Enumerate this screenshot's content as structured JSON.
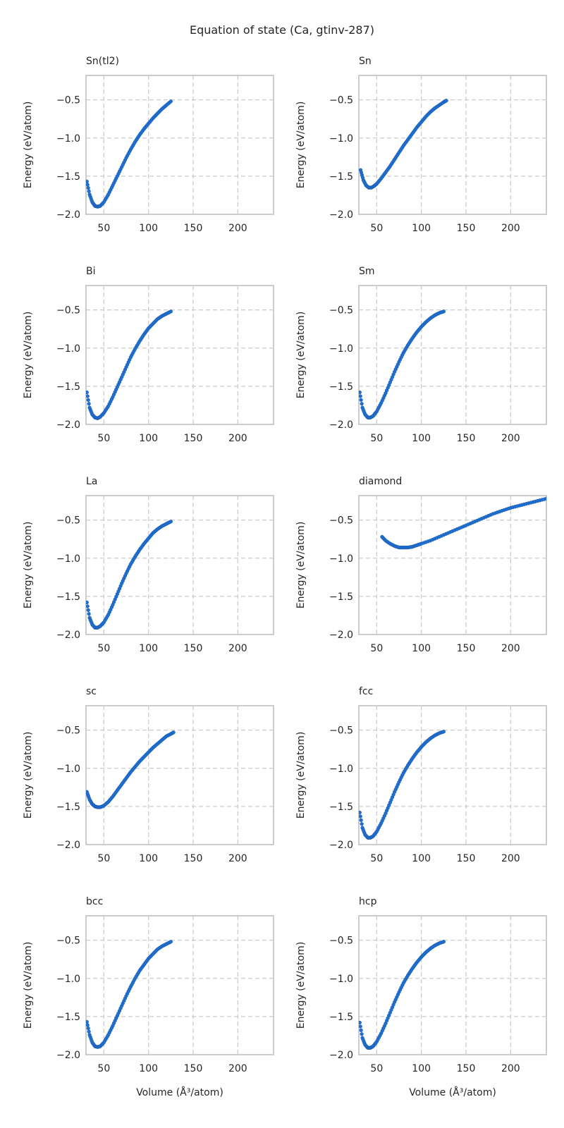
{
  "figure": {
    "title": "Equation of state (Ca, gtinv-287)",
    "xlabel": "Volume (Å³/atom)",
    "ylabel": "Energy (eV/atom)",
    "point_color": "#1f6fd1"
  },
  "chart_data": [
    {
      "type": "scatter",
      "title": "Sn(tl2)",
      "xlabel": "",
      "ylabel": "Energy (eV/atom)",
      "xlim": [
        30,
        240
      ],
      "ylim": [
        -2.0,
        -0.18
      ],
      "xticks": [
        50,
        100,
        150,
        200
      ],
      "yticks": [
        -2.0,
        -1.5,
        -1.0,
        -0.5
      ],
      "grid": true,
      "series": [
        {
          "x": [
            31,
            34,
            37,
            40,
            43,
            46,
            50,
            55,
            60,
            65,
            70,
            75,
            80,
            85,
            90,
            95,
            100,
            105,
            110,
            115,
            120,
            125
          ],
          "y": [
            -1.57,
            -1.74,
            -1.84,
            -1.89,
            -1.9,
            -1.89,
            -1.84,
            -1.74,
            -1.62,
            -1.5,
            -1.38,
            -1.26,
            -1.15,
            -1.05,
            -0.96,
            -0.88,
            -0.81,
            -0.74,
            -0.68,
            -0.62,
            -0.57,
            -0.52
          ]
        }
      ]
    },
    {
      "type": "scatter",
      "title": "Sn",
      "xlabel": "",
      "ylabel": "Energy (eV/atom)",
      "xlim": [
        30,
        240
      ],
      "ylim": [
        -2.0,
        -0.18
      ],
      "xticks": [
        50,
        100,
        150,
        200
      ],
      "yticks": [
        -2.0,
        -1.5,
        -1.0,
        -0.5
      ],
      "grid": true,
      "series": [
        {
          "x": [
            32,
            35,
            38,
            41,
            44,
            47,
            50,
            55,
            60,
            65,
            70,
            75,
            80,
            85,
            90,
            95,
            100,
            105,
            110,
            115,
            120,
            125,
            128
          ],
          "y": [
            -1.42,
            -1.55,
            -1.62,
            -1.65,
            -1.65,
            -1.63,
            -1.6,
            -1.53,
            -1.45,
            -1.37,
            -1.28,
            -1.19,
            -1.1,
            -1.02,
            -0.94,
            -0.86,
            -0.79,
            -0.72,
            -0.66,
            -0.61,
            -0.57,
            -0.53,
            -0.51
          ]
        }
      ]
    },
    {
      "type": "scatter",
      "title": "Bi",
      "xlabel": "",
      "ylabel": "Energy (eV/atom)",
      "xlim": [
        30,
        240
      ],
      "ylim": [
        -2.0,
        -0.18
      ],
      "xticks": [
        50,
        100,
        150,
        200
      ],
      "yticks": [
        -2.0,
        -1.5,
        -1.0,
        -0.5
      ],
      "grid": true,
      "series": [
        {
          "x": [
            31,
            34,
            37,
            40,
            43,
            46,
            50,
            55,
            60,
            65,
            70,
            75,
            80,
            85,
            90,
            95,
            100,
            105,
            110,
            115,
            120,
            125
          ],
          "y": [
            -1.58,
            -1.78,
            -1.87,
            -1.91,
            -1.92,
            -1.9,
            -1.85,
            -1.76,
            -1.64,
            -1.51,
            -1.38,
            -1.25,
            -1.12,
            -1.01,
            -0.91,
            -0.82,
            -0.74,
            -0.68,
            -0.62,
            -0.58,
            -0.55,
            -0.52
          ]
        }
      ]
    },
    {
      "type": "scatter",
      "title": "Sm",
      "xlabel": "",
      "ylabel": "Energy (eV/atom)",
      "xlim": [
        30,
        240
      ],
      "ylim": [
        -2.0,
        -0.18
      ],
      "xticks": [
        50,
        100,
        150,
        200
      ],
      "yticks": [
        -2.0,
        -1.5,
        -1.0,
        -0.5
      ],
      "grid": true,
      "series": [
        {
          "x": [
            31,
            34,
            37,
            40,
            43,
            46,
            50,
            55,
            60,
            65,
            70,
            75,
            80,
            85,
            90,
            95,
            100,
            105,
            110,
            115,
            120,
            125
          ],
          "y": [
            -1.58,
            -1.78,
            -1.87,
            -1.91,
            -1.91,
            -1.89,
            -1.83,
            -1.72,
            -1.59,
            -1.45,
            -1.31,
            -1.18,
            -1.06,
            -0.96,
            -0.87,
            -0.79,
            -0.72,
            -0.66,
            -0.61,
            -0.57,
            -0.54,
            -0.52
          ]
        }
      ]
    },
    {
      "type": "scatter",
      "title": "La",
      "xlabel": "",
      "ylabel": "Energy (eV/atom)",
      "xlim": [
        30,
        240
      ],
      "ylim": [
        -2.0,
        -0.18
      ],
      "xticks": [
        50,
        100,
        150,
        200
      ],
      "yticks": [
        -2.0,
        -1.5,
        -1.0,
        -0.5
      ],
      "grid": true,
      "series": [
        {
          "x": [
            31,
            34,
            37,
            40,
            43,
            46,
            50,
            55,
            60,
            65,
            70,
            75,
            80,
            85,
            90,
            95,
            100,
            105,
            110,
            115,
            120,
            125
          ],
          "y": [
            -1.58,
            -1.78,
            -1.87,
            -1.91,
            -1.91,
            -1.89,
            -1.84,
            -1.74,
            -1.61,
            -1.47,
            -1.33,
            -1.2,
            -1.08,
            -0.98,
            -0.89,
            -0.81,
            -0.74,
            -0.67,
            -0.62,
            -0.58,
            -0.55,
            -0.52
          ]
        }
      ]
    },
    {
      "type": "scatter",
      "title": "diamond",
      "xlabel": "",
      "ylabel": "Energy (eV/atom)",
      "xlim": [
        30,
        240
      ],
      "ylim": [
        -2.0,
        -0.18
      ],
      "xticks": [
        50,
        100,
        150,
        200
      ],
      "yticks": [
        -2.0,
        -1.5,
        -1.0,
        -0.5
      ],
      "grid": true,
      "series": [
        {
          "x": [
            56,
            60,
            65,
            70,
            75,
            80,
            85,
            90,
            95,
            100,
            110,
            120,
            130,
            140,
            150,
            160,
            170,
            180,
            190,
            200,
            210,
            220,
            230,
            240
          ],
          "y": [
            -0.72,
            -0.77,
            -0.81,
            -0.84,
            -0.86,
            -0.86,
            -0.86,
            -0.85,
            -0.83,
            -0.81,
            -0.77,
            -0.72,
            -0.67,
            -0.62,
            -0.57,
            -0.52,
            -0.47,
            -0.42,
            -0.38,
            -0.34,
            -0.31,
            -0.28,
            -0.25,
            -0.22
          ]
        }
      ]
    },
    {
      "type": "scatter",
      "title": "sc",
      "xlabel": "",
      "ylabel": "Energy (eV/atom)",
      "xlim": [
        30,
        240
      ],
      "ylim": [
        -2.0,
        -0.18
      ],
      "xticks": [
        50,
        100,
        150,
        200
      ],
      "yticks": [
        -2.0,
        -1.5,
        -1.0,
        -0.5
      ],
      "grid": true,
      "series": [
        {
          "x": [
            31,
            34,
            37,
            40,
            43,
            46,
            50,
            55,
            60,
            65,
            70,
            75,
            80,
            85,
            90,
            95,
            100,
            105,
            110,
            115,
            120,
            125,
            128
          ],
          "y": [
            -1.31,
            -1.41,
            -1.47,
            -1.5,
            -1.51,
            -1.51,
            -1.49,
            -1.44,
            -1.37,
            -1.29,
            -1.21,
            -1.13,
            -1.05,
            -0.98,
            -0.91,
            -0.85,
            -0.79,
            -0.73,
            -0.68,
            -0.63,
            -0.58,
            -0.55,
            -0.53
          ]
        }
      ]
    },
    {
      "type": "scatter",
      "title": "fcc",
      "xlabel": "",
      "ylabel": "Energy (eV/atom)",
      "xlim": [
        30,
        240
      ],
      "ylim": [
        -2.0,
        -0.18
      ],
      "xticks": [
        50,
        100,
        150,
        200
      ],
      "yticks": [
        -2.0,
        -1.5,
        -1.0,
        -0.5
      ],
      "grid": true,
      "series": [
        {
          "x": [
            31,
            34,
            37,
            40,
            43,
            46,
            50,
            55,
            60,
            65,
            70,
            75,
            80,
            85,
            90,
            95,
            100,
            105,
            110,
            115,
            120,
            125
          ],
          "y": [
            -1.58,
            -1.78,
            -1.87,
            -1.91,
            -1.91,
            -1.89,
            -1.83,
            -1.72,
            -1.59,
            -1.45,
            -1.31,
            -1.18,
            -1.06,
            -0.96,
            -0.87,
            -0.79,
            -0.72,
            -0.66,
            -0.61,
            -0.57,
            -0.54,
            -0.52
          ]
        }
      ]
    },
    {
      "type": "scatter",
      "title": "bcc",
      "xlabel": "Volume (Å³/atom)",
      "ylabel": "Energy (eV/atom)",
      "xlim": [
        30,
        240
      ],
      "ylim": [
        -2.0,
        -0.18
      ],
      "xticks": [
        50,
        100,
        150,
        200
      ],
      "yticks": [
        -2.0,
        -1.5,
        -1.0,
        -0.5
      ],
      "grid": true,
      "series": [
        {
          "x": [
            31,
            34,
            37,
            40,
            43,
            46,
            50,
            55,
            60,
            65,
            70,
            75,
            80,
            85,
            90,
            95,
            100,
            105,
            110,
            115,
            120,
            125
          ],
          "y": [
            -1.57,
            -1.74,
            -1.84,
            -1.89,
            -1.9,
            -1.89,
            -1.84,
            -1.74,
            -1.62,
            -1.49,
            -1.36,
            -1.23,
            -1.11,
            -1.0,
            -0.9,
            -0.82,
            -0.74,
            -0.68,
            -0.62,
            -0.58,
            -0.55,
            -0.52
          ]
        }
      ]
    },
    {
      "type": "scatter",
      "title": "hcp",
      "xlabel": "Volume (Å³/atom)",
      "ylabel": "Energy (eV/atom)",
      "xlim": [
        30,
        240
      ],
      "ylim": [
        -2.0,
        -0.18
      ],
      "xticks": [
        50,
        100,
        150,
        200
      ],
      "yticks": [
        -2.0,
        -1.5,
        -1.0,
        -0.5
      ],
      "grid": true,
      "series": [
        {
          "x": [
            31,
            34,
            37,
            40,
            43,
            46,
            50,
            55,
            60,
            65,
            70,
            75,
            80,
            85,
            90,
            95,
            100,
            105,
            110,
            115,
            120,
            125
          ],
          "y": [
            -1.58,
            -1.78,
            -1.87,
            -1.91,
            -1.91,
            -1.89,
            -1.83,
            -1.72,
            -1.59,
            -1.45,
            -1.31,
            -1.18,
            -1.06,
            -0.96,
            -0.87,
            -0.79,
            -0.72,
            -0.66,
            -0.61,
            -0.57,
            -0.54,
            -0.52
          ]
        }
      ]
    }
  ]
}
